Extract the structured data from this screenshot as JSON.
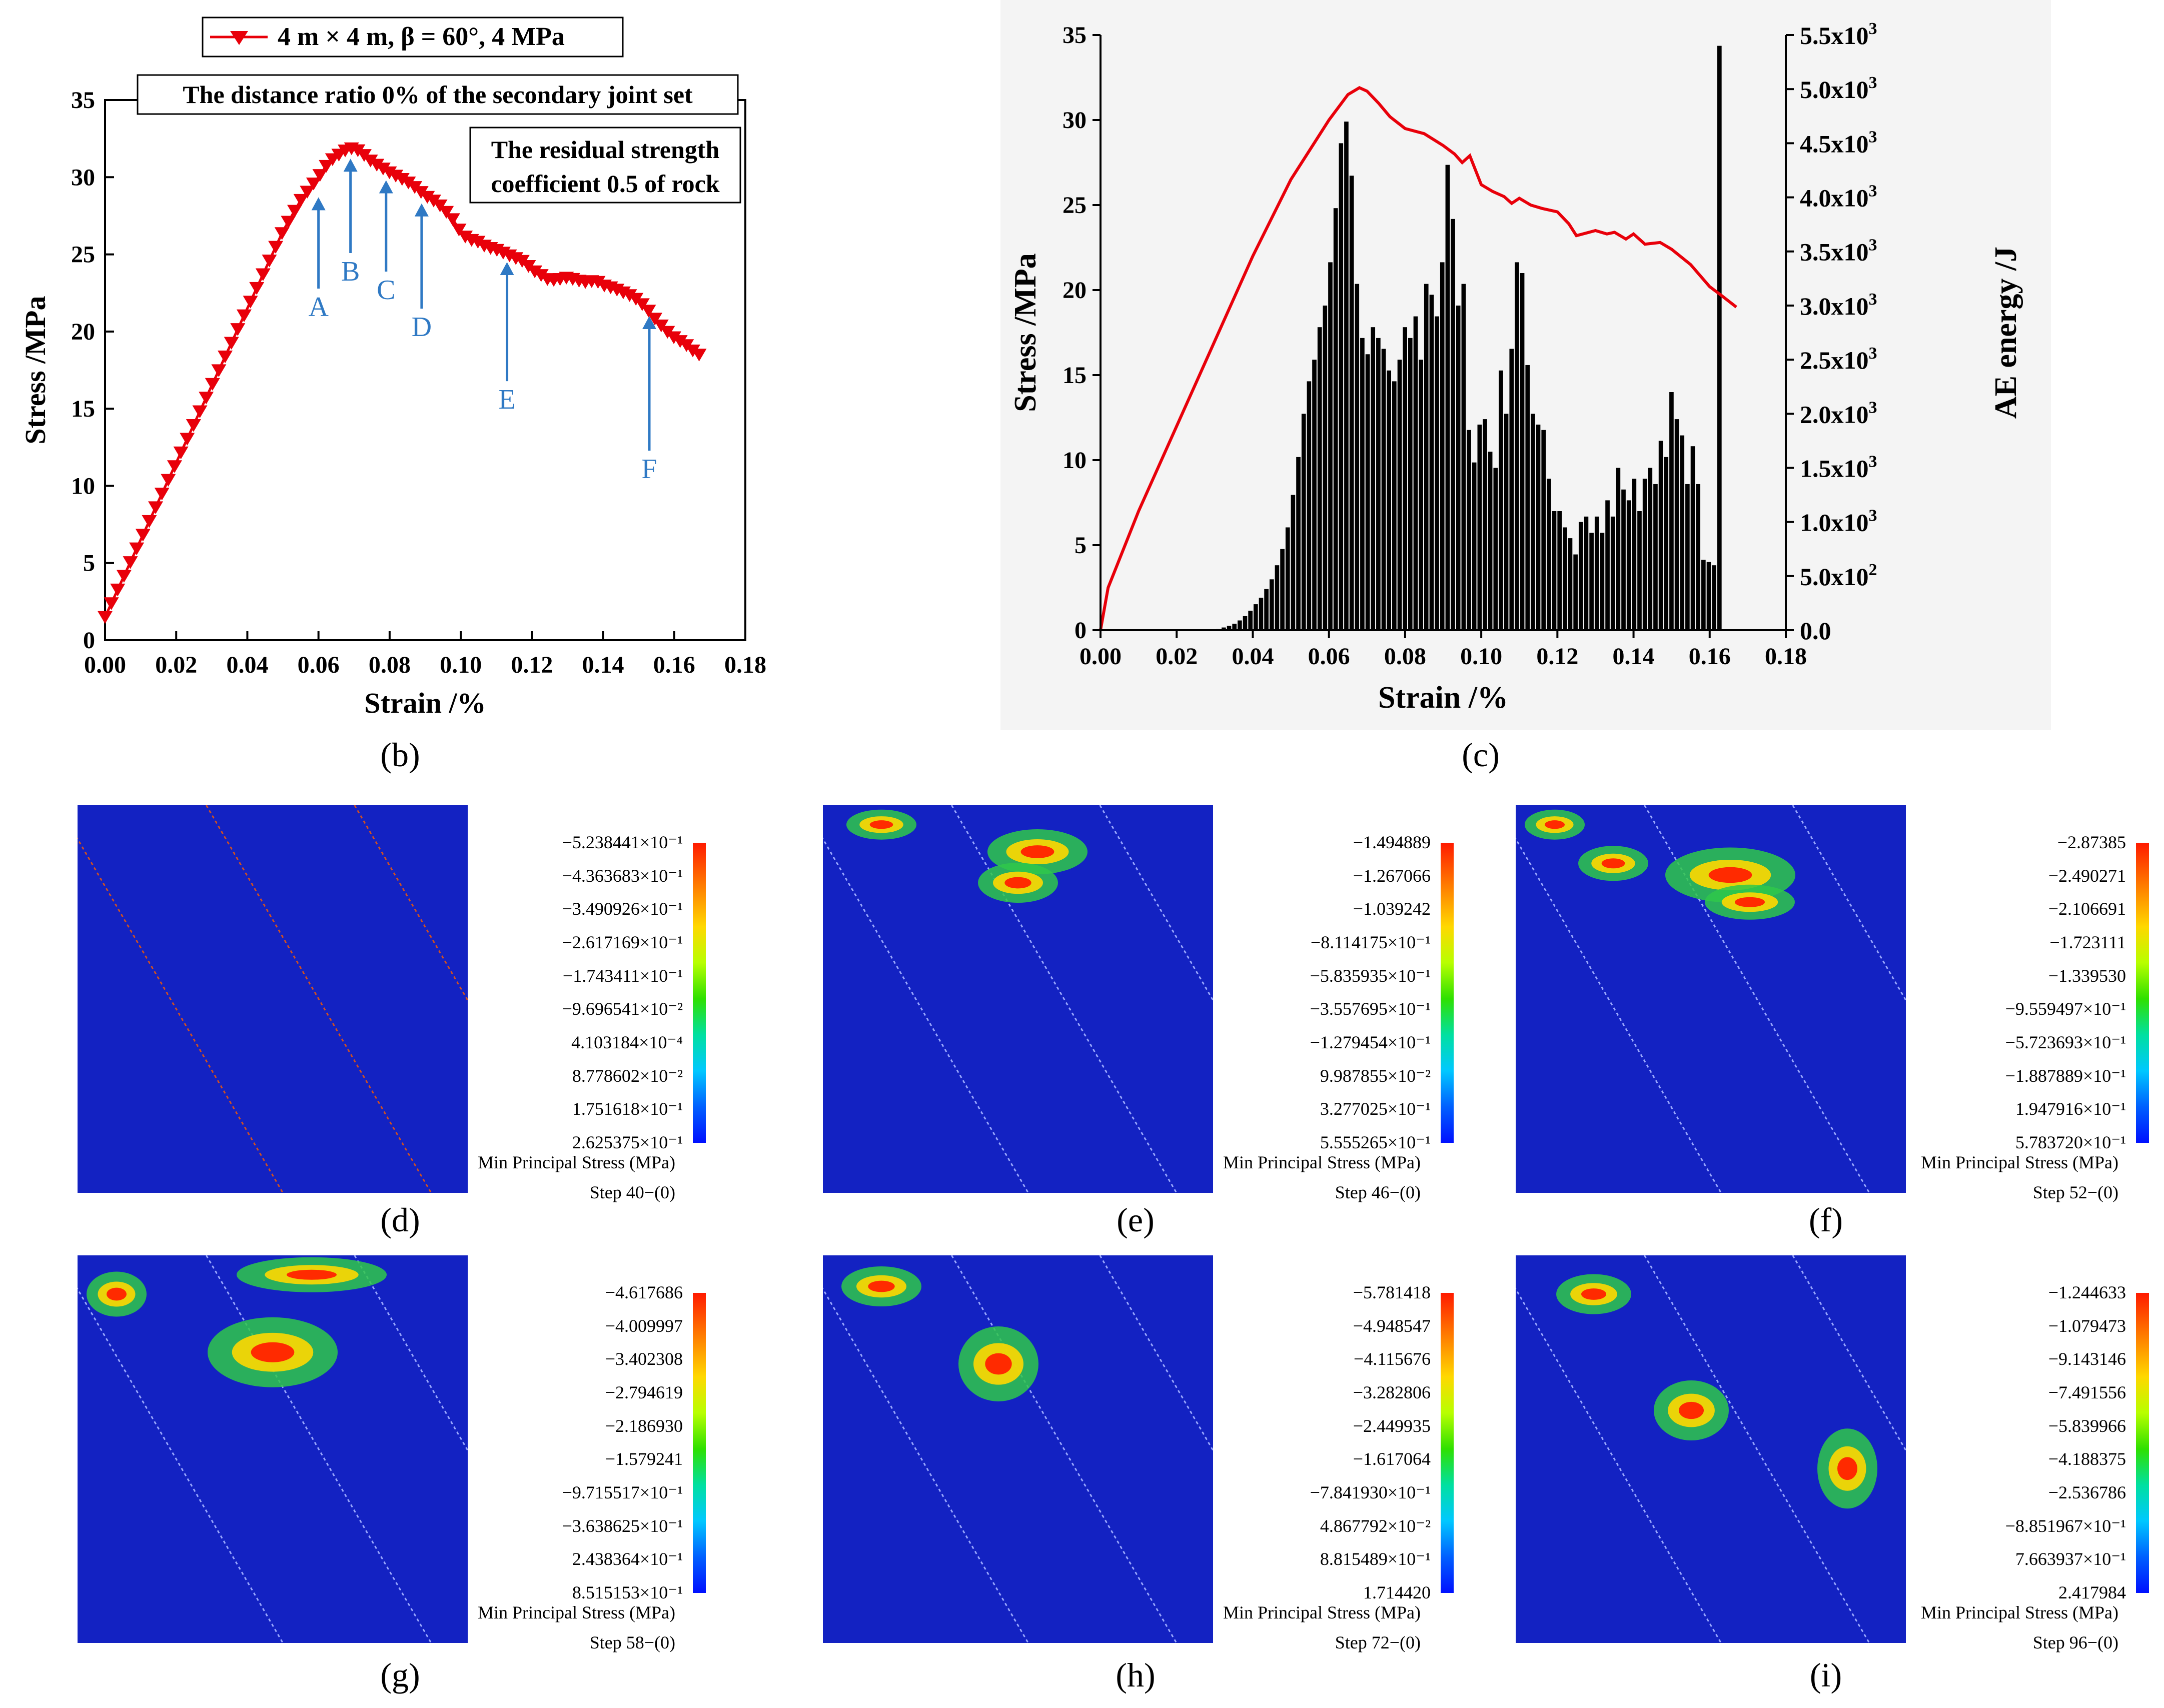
{
  "chart_data": [
    {
      "panel": "(b)",
      "type": "line",
      "legend": "4 m × 4 m,  β = 60°,  4 MPa",
      "annotations": [
        "The distance ratio  0%  of the secondary joint set",
        "The residual strength coefficient 0.5 of rock"
      ],
      "xlabel": "Strain /%",
      "ylabel": "Stress /MPa",
      "xlim": [
        0,
        0.18
      ],
      "ylim": [
        0,
        35
      ],
      "xticks": [
        "0.00",
        "0.02",
        "0.04",
        "0.06",
        "0.08",
        "0.10",
        "0.12",
        "0.14",
        "0.16",
        "0.18"
      ],
      "yticks": [
        "0",
        "5",
        "10",
        "15",
        "20",
        "25",
        "30",
        "35"
      ],
      "x": [
        0,
        0.002,
        0.005,
        0.01,
        0.015,
        0.02,
        0.025,
        0.03,
        0.035,
        0.04,
        0.045,
        0.05,
        0.055,
        0.06,
        0.063,
        0.066,
        0.068,
        0.07,
        0.072,
        0.075,
        0.08,
        0.085,
        0.088,
        0.09,
        0.093,
        0.095,
        0.098,
        0.1,
        0.102,
        0.105,
        0.107,
        0.11,
        0.113,
        0.115,
        0.118,
        0.12,
        0.123,
        0.125,
        0.128,
        0.13,
        0.133,
        0.135,
        0.138,
        0.14,
        0.143,
        0.145,
        0.148,
        0.15,
        0.153,
        0.155,
        0.158,
        0.16,
        0.163,
        0.165,
        0.167
      ],
      "y": [
        1.5,
        2.5,
        4.0,
        6.5,
        9.0,
        11.5,
        14.0,
        16.5,
        19.0,
        21.5,
        24.0,
        26.5,
        28.5,
        30.0,
        31.0,
        31.5,
        31.8,
        31.9,
        31.6,
        31.0,
        30.3,
        29.7,
        29.2,
        28.8,
        28.4,
        28.0,
        27.2,
        26.4,
        26.0,
        25.8,
        25.5,
        25.3,
        25.0,
        24.8,
        24.5,
        24.0,
        23.6,
        23.3,
        23.4,
        23.5,
        23.3,
        23.2,
        23.3,
        23.0,
        22.8,
        22.6,
        22.3,
        22.0,
        21.3,
        20.7,
        20.0,
        19.6,
        19.2,
        18.8,
        18.5
      ],
      "points": [
        {
          "label": "A",
          "x": 0.06,
          "y": 28.7,
          "label_y": 21.0
        },
        {
          "label": "B",
          "x": 0.069,
          "y": 31.2,
          "label_y": 23.3
        },
        {
          "label": "C",
          "x": 0.079,
          "y": 29.8,
          "label_y": 22.1
        },
        {
          "label": "D",
          "x": 0.089,
          "y": 28.3,
          "label_y": 19.7
        },
        {
          "label": "E",
          "x": 0.113,
          "y": 24.5,
          "label_y": 15.0
        },
        {
          "label": "F",
          "x": 0.153,
          "y": 21.0,
          "label_y": 10.5
        }
      ],
      "color": "#e8000a"
    },
    {
      "panel": "(c)",
      "type": "bar+line",
      "xlabel": "Strain /%",
      "ylabel": "Stress /MPa",
      "y2label": "AE energy /J",
      "xlim": [
        0,
        0.18
      ],
      "ylim": [
        0,
        35
      ],
      "y2lim": [
        0,
        5500
      ],
      "xticks": [
        "0.00",
        "0.02",
        "0.04",
        "0.06",
        "0.08",
        "0.10",
        "0.12",
        "0.14",
        "0.16",
        "0.18"
      ],
      "yticks": [
        "0",
        "5",
        "10",
        "15",
        "20",
        "25",
        "30",
        "35"
      ],
      "y2ticks": [
        {
          "mant": "0.0",
          "exp": ""
        },
        {
          "mant": "5.0x10",
          "exp": "2"
        },
        {
          "mant": "1.0x10",
          "exp": "3"
        },
        {
          "mant": "1.5x10",
          "exp": "3"
        },
        {
          "mant": "2.0x10",
          "exp": "3"
        },
        {
          "mant": "2.5x10",
          "exp": "3"
        },
        {
          "mant": "3.0x10",
          "exp": "3"
        },
        {
          "mant": "3.5x10",
          "exp": "3"
        },
        {
          "mant": "4.0x10",
          "exp": "3"
        },
        {
          "mant": "4.5x10",
          "exp": "3"
        },
        {
          "mant": "5.0x10",
          "exp": "3"
        },
        {
          "mant": "5.5x10",
          "exp": "3"
        }
      ],
      "stress_x": [
        0,
        0.002,
        0.01,
        0.02,
        0.03,
        0.04,
        0.05,
        0.06,
        0.065,
        0.068,
        0.07,
        0.073,
        0.076,
        0.08,
        0.085,
        0.09,
        0.093,
        0.095,
        0.097,
        0.1,
        0.103,
        0.106,
        0.108,
        0.11,
        0.113,
        0.116,
        0.12,
        0.123,
        0.125,
        0.13,
        0.133,
        0.135,
        0.138,
        0.14,
        0.143,
        0.147,
        0.15,
        0.155,
        0.16,
        0.163,
        0.167
      ],
      "stress_y": [
        0,
        2.5,
        7.0,
        12.0,
        17.0,
        22.0,
        26.5,
        30.0,
        31.5,
        31.9,
        31.7,
        31.0,
        30.2,
        29.5,
        29.2,
        28.5,
        28.0,
        27.5,
        27.9,
        26.2,
        25.8,
        25.5,
        25.1,
        25.4,
        25.0,
        24.8,
        24.6,
        23.9,
        23.2,
        23.5,
        23.3,
        23.4,
        23.0,
        23.3,
        22.7,
        22.8,
        22.4,
        21.5,
        20.2,
        19.7,
        19.0
      ],
      "ae_x_start": 0.029,
      "ae_bin_width": 0.0014,
      "ae_energy": [
        5,
        10,
        25,
        40,
        60,
        90,
        130,
        180,
        240,
        300,
        380,
        470,
        600,
        750,
        950,
        1250,
        1600,
        2000,
        2300,
        2500,
        2800,
        3000,
        3400,
        3900,
        4500,
        4700,
        4200,
        3200,
        2700,
        2550,
        2800,
        2700,
        2600,
        2400,
        2300,
        2500,
        2800,
        2700,
        2900,
        2500,
        3200,
        3100,
        2900,
        3400,
        4300,
        3800,
        3000,
        3200,
        1850,
        1550,
        1900,
        1950,
        1650,
        1500,
        2400,
        2000,
        2600,
        3400,
        3300,
        2450,
        2000,
        1900,
        1850,
        1400,
        1100,
        1100,
        950,
        850,
        700,
        1000,
        1050,
        900,
        1050,
        900,
        1200,
        1050,
        1500,
        1300,
        1200,
        1400,
        1100,
        1400,
        1500,
        1350,
        1750,
        1600,
        2200,
        1950,
        1800,
        1350,
        1700,
        1350,
        650,
        630,
        600,
        5400
      ]
    }
  ],
  "panel_labels": {
    "b": "(b)",
    "c": "(c)",
    "d": "(d)",
    "e": "(e)",
    "f": "(f)",
    "g": "(g)",
    "h": "(h)",
    "i": "(i)"
  },
  "contour_panels": [
    {
      "id": "d",
      "title": "Min Principal Stress (MPa)",
      "step": "Step 40−(0)",
      "scale": [
        "−5.238441×10⁻¹",
        "−4.363683×10⁻¹",
        "−3.490926×10⁻¹",
        "−2.617169×10⁻¹",
        "−1.743411×10⁻¹",
        "−9.696541×10⁻²",
        "4.103184×10⁻⁴",
        "8.778602×10⁻²",
        "1.751618×10⁻¹",
        "2.625375×10⁻¹"
      ]
    },
    {
      "id": "e",
      "title": "Min Principal Stress (MPa)",
      "step": "Step 46−(0)",
      "scale": [
        "−1.494889",
        "−1.267066",
        "−1.039242",
        "−8.114175×10⁻¹",
        "−5.835935×10⁻¹",
        "−3.557695×10⁻¹",
        "−1.279454×10⁻¹",
        "9.987855×10⁻²",
        "3.277025×10⁻¹",
        "5.555265×10⁻¹"
      ]
    },
    {
      "id": "f",
      "title": "Min Principal Stress (MPa)",
      "step": "Step 52−(0)",
      "scale": [
        "−2.87385",
        "−2.490271",
        "−2.106691",
        "−1.723111",
        "−1.339530",
        "−9.559497×10⁻¹",
        "−5.723693×10⁻¹",
        "−1.887889×10⁻¹",
        "1.947916×10⁻¹",
        "5.783720×10⁻¹"
      ]
    },
    {
      "id": "g",
      "title": "Min Principal Stress (MPa)",
      "step": "Step 58−(0)",
      "scale": [
        "−4.617686",
        "−4.009997",
        "−3.402308",
        "−2.794619",
        "−2.186930",
        "−1.579241",
        "−9.715517×10⁻¹",
        "−3.638625×10⁻¹",
        "2.438364×10⁻¹",
        "8.515153×10⁻¹"
      ]
    },
    {
      "id": "h",
      "title": "Min Principal Stress (MPa)",
      "step": "Step 72−(0)",
      "scale": [
        "−5.781418",
        "−4.948547",
        "−4.115676",
        "−3.282806",
        "−2.449935",
        "−1.617064",
        "−7.841930×10⁻¹",
        "4.867792×10⁻²",
        "8.815489×10⁻¹",
        "1.714420"
      ]
    },
    {
      "id": "i",
      "title": "Min Principal Stress (MPa)",
      "step": "Step 96−(0)",
      "scale": [
        "−1.244633",
        "−1.079473",
        "−9.143146",
        "−7.491556",
        "−5.839966",
        "−4.188375",
        "−2.536786",
        "−8.851967×10⁻¹",
        "7.663937×10⁻¹",
        "2.417984"
      ]
    }
  ]
}
